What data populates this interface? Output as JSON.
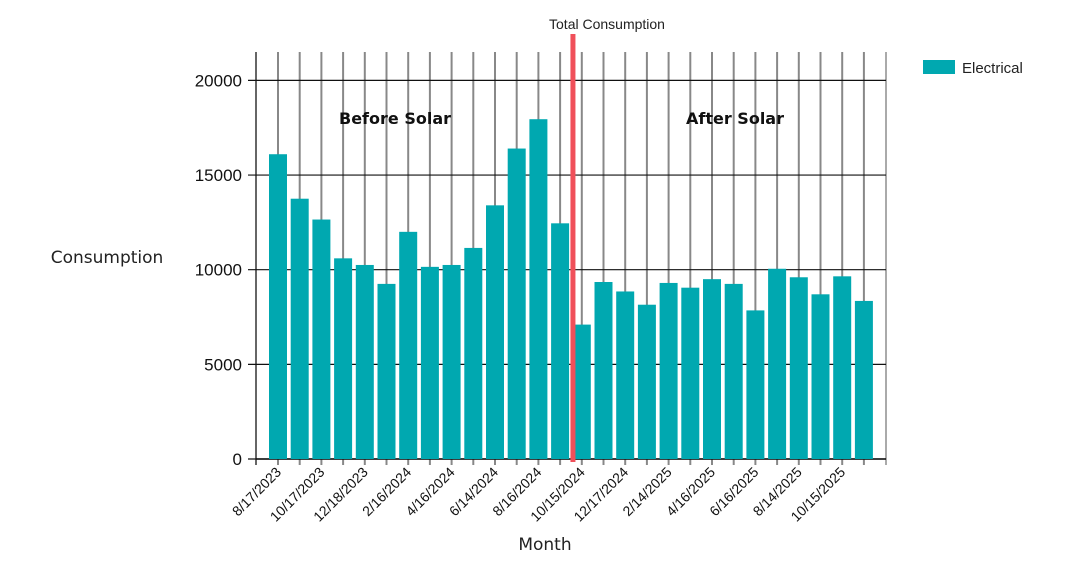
{
  "chart_data": {
    "type": "bar",
    "title": "Total Consumption",
    "xlabel": "Month",
    "ylabel": "Consumption",
    "ylim": [
      0,
      21500
    ],
    "yticks": [
      0,
      5000,
      10000,
      15000,
      20000
    ],
    "grid": true,
    "legend_position": "top-right",
    "categories": [
      "8/17/2023",
      "",
      "10/17/2023",
      "",
      "12/18/2023",
      "",
      "2/16/2024",
      "",
      "4/16/2024",
      "",
      "6/14/2024",
      "",
      "8/16/2024",
      "",
      "10/15/2024",
      "",
      "12/17/2024",
      "",
      "2/14/2025",
      "",
      "4/16/2025",
      "",
      "6/16/2025",
      "",
      "8/14/2025",
      "",
      "10/15/2025",
      ""
    ],
    "series": [
      {
        "name": "Electrical",
        "color": "#00A8B0",
        "values": [
          16100,
          13750,
          12650,
          10600,
          10250,
          9250,
          12000,
          10150,
          10250,
          11150,
          13400,
          16400,
          17950,
          12450,
          7100,
          9350,
          8850,
          8150,
          9300,
          9050,
          9500,
          9250,
          7850,
          10050,
          9600,
          8700,
          9650,
          8350
        ]
      }
    ],
    "divider": {
      "between_index": 14,
      "color": "#F0505A"
    },
    "annotations": [
      "Before Solar",
      "After Solar"
    ]
  }
}
